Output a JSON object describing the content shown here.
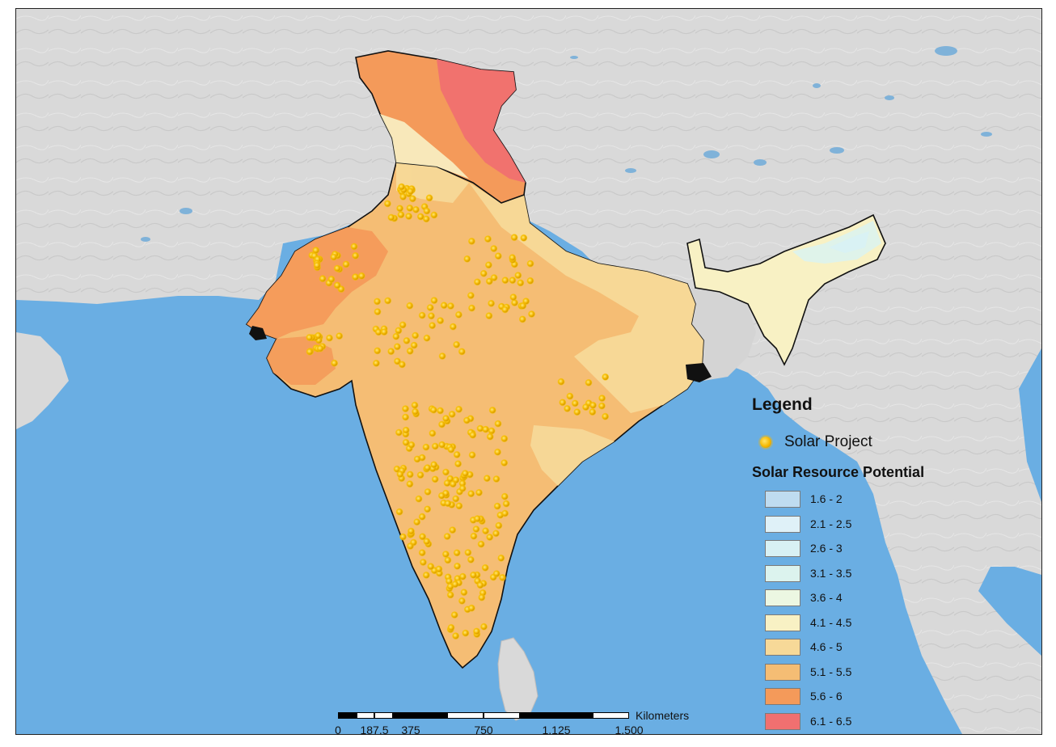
{
  "map": {
    "colors": {
      "ocean": "#6aaee3",
      "land": "#d9d9d9",
      "border": "#111111",
      "lake": "#7fb2d9",
      "solar_project": "#f5b800"
    }
  },
  "legend": {
    "title": "Legend",
    "point_layer": {
      "label": "Solar Project",
      "icon": "solar-project-point-icon"
    },
    "raster_title": "Solar Resource Potential",
    "classes": [
      {
        "label": "1.6 - 2",
        "color": "#bfdcf0"
      },
      {
        "label": "2.1 - 2.5",
        "color": "#dff1f8"
      },
      {
        "label": "2.6 - 3",
        "color": "#d8f1f4"
      },
      {
        "label": "3.1 - 3.5",
        "color": "#dcf3ee"
      },
      {
        "label": "3.6 - 4",
        "color": "#ecf7e2"
      },
      {
        "label": "4.1 - 4.5",
        "color": "#f8f1c4"
      },
      {
        "label": "4.6 - 5",
        "color": "#f7d998"
      },
      {
        "label": "5.1 - 5.5",
        "color": "#f5bd74"
      },
      {
        "label": "5.6 - 6",
        "color": "#f49a5a"
      },
      {
        "label": "6.1 - 6.5",
        "color": "#f07070"
      }
    ]
  },
  "scalebar": {
    "unit": "Kilometers",
    "ticks": [
      "0",
      "187.5",
      "375",
      "750",
      "1,125",
      "1,500"
    ],
    "tick_values": [
      0,
      187.5,
      375,
      750,
      1125,
      1500
    ]
  }
}
